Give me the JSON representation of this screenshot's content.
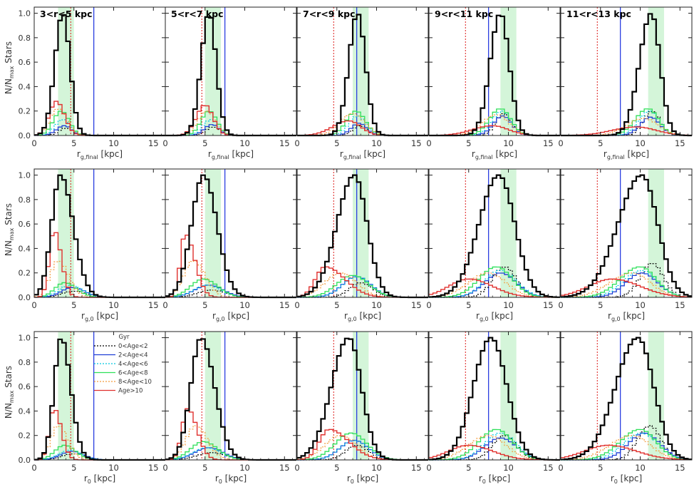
{
  "figure": {
    "ylabel_main": "N/N",
    "ylabel_sub": "max",
    "ylabel_tail": " Stars",
    "x_ticks": [
      "0",
      "5",
      "10",
      "15"
    ],
    "y_ticks": [
      "0.0",
      "0.2",
      "0.4",
      "0.6",
      "0.8",
      "1.0"
    ],
    "row_xlabels": [
      {
        "main": "r",
        "sub": "g,final",
        "tail": " [kpc]"
      },
      {
        "main": "r",
        "sub": "g,0",
        "tail": " [kpc]"
      },
      {
        "main": "r",
        "sub": "0",
        "tail": " [kpc]"
      }
    ],
    "panel_titles": [
      "3<r<5 kpc",
      "5<r<7 kpc",
      "7<r<9 kpc",
      "9<r<11 kpc",
      "11<r<13 kpc"
    ],
    "legend": {
      "title": "Gyr",
      "entries": [
        "0<Age<2",
        "2<Age<4",
        "4<Age<6",
        "6<Age<8",
        "8<Age<10",
        "Age>10"
      ]
    },
    "colors": {
      "total": "#000000",
      "age_0_2": "#000000",
      "age_2_4": "#1f3fd6",
      "age_4_6": "#00c8e0",
      "age_6_8": "#2ee05a",
      "age_8_10": "#f39a3a",
      "age_10": "#e0302e",
      "band": "#d4f5d9",
      "solar_line": "#2b3fe0",
      "bar_line": "#e0302e"
    }
  },
  "chart_data": {
    "type": "line",
    "subtype": "step-histogram grid",
    "rows": [
      "final guiding radius r_g,final",
      "initial guiding radius r_g,0",
      "birth radius r_0"
    ],
    "columns": [
      "3<r<5 kpc",
      "5<r<7 kpc",
      "7<r<9 kpc",
      "9<r<11 kpc",
      "11<r<13 kpc"
    ],
    "xlim": [
      0,
      16.5
    ],
    "ylim": [
      0,
      1.05
    ],
    "bin_width_kpc": 0.5,
    "reference_lines_kpc": {
      "solar_radius": 7.5,
      "bar_radius": 4.6
    },
    "shaded_bands_kpc": [
      [
        3,
        5
      ],
      [
        5,
        7
      ],
      [
        7,
        9
      ],
      [
        9,
        11
      ],
      [
        11,
        13
      ]
    ],
    "series_names": [
      "all stars",
      "0<Age<2",
      "2<Age<4",
      "4<Age<6",
      "6<Age<8",
      "8<Age<10",
      "Age>10"
    ],
    "approx_shape_params": {
      "note": "Each curve approximated as asymmetric Gaussian: [peak_x_kpc, peak_height, left_sigma, right_sigma]",
      "row1": [
        {
          "all": [
            3.6,
            1.0,
            1.0,
            0.9
          ],
          "age10": [
            2.8,
            0.28,
            0.9,
            1.0
          ],
          "age8_10": [
            3.0,
            0.22,
            1.0,
            1.1
          ],
          "age6_8": [
            3.4,
            0.2,
            1.0,
            1.0
          ],
          "age4_6": [
            3.6,
            0.13,
            1.0,
            1.0
          ],
          "age2_4": [
            3.8,
            0.08,
            1.0,
            0.9
          ],
          "age0_2": [
            4.0,
            0.06,
            0.9,
            0.9
          ]
        },
        {
          "all": [
            5.5,
            1.0,
            1.0,
            0.9
          ],
          "age10": [
            5.0,
            0.25,
            1.1,
            1.0
          ],
          "age8_10": [
            5.2,
            0.2,
            1.1,
            1.1
          ],
          "age6_8": [
            5.5,
            0.2,
            1.0,
            1.0
          ],
          "age4_6": [
            5.7,
            0.13,
            1.0,
            1.0
          ],
          "age2_4": [
            5.9,
            0.09,
            1.0,
            0.9
          ],
          "age0_2": [
            6.0,
            0.07,
            0.9,
            0.9
          ]
        },
        {
          "all": [
            7.6,
            1.0,
            1.1,
            1.0
          ],
          "age10": [
            6.5,
            0.12,
            2.0,
            1.5
          ],
          "age8_10": [
            7.0,
            0.18,
            1.6,
            1.5
          ],
          "age6_8": [
            7.4,
            0.2,
            1.2,
            1.2
          ],
          "age4_6": [
            7.6,
            0.16,
            1.1,
            1.1
          ],
          "age2_4": [
            7.8,
            0.1,
            1.0,
            1.0
          ],
          "age0_2": [
            7.9,
            0.08,
            0.9,
            0.9
          ]
        },
        {
          "all": [
            9.0,
            1.0,
            1.3,
            1.1
          ],
          "age10": [
            8.0,
            0.08,
            2.5,
            2.0
          ],
          "age8_10": [
            8.5,
            0.17,
            1.8,
            1.6
          ],
          "age6_8": [
            9.0,
            0.22,
            1.4,
            1.3
          ],
          "age4_6": [
            9.2,
            0.2,
            1.3,
            1.2
          ],
          "age2_4": [
            9.3,
            0.16,
            1.2,
            1.1
          ],
          "age0_2": [
            9.4,
            0.18,
            1.0,
            1.0
          ]
        },
        {
          "all": [
            11.4,
            1.0,
            1.5,
            1.1
          ],
          "age10": [
            9.5,
            0.07,
            3.0,
            2.5
          ],
          "age8_10": [
            10.5,
            0.14,
            2.2,
            1.8
          ],
          "age6_8": [
            11.0,
            0.22,
            1.6,
            1.3
          ],
          "age4_6": [
            11.2,
            0.2,
            1.4,
            1.2
          ],
          "age2_4": [
            11.3,
            0.15,
            1.3,
            1.2
          ],
          "age0_2": [
            11.5,
            0.2,
            1.1,
            1.0
          ]
        }
      ],
      "row2": [
        {
          "all": [
            3.3,
            1.0,
            1.1,
            1.6
          ],
          "age10": [
            2.5,
            0.55,
            0.6,
            0.9
          ],
          "age8_10": [
            3.0,
            0.3,
            1.0,
            1.3
          ],
          "age6_8": [
            3.8,
            0.12,
            1.2,
            1.5
          ],
          "age4_6": [
            4.5,
            0.1,
            1.4,
            1.6
          ],
          "age2_4": [
            4.8,
            0.08,
            1.4,
            1.6
          ],
          "age0_2": [
            5.0,
            0.05,
            1.5,
            1.6
          ]
        },
        {
          "all": [
            4.8,
            1.0,
            1.5,
            1.7
          ],
          "age10": [
            2.5,
            0.52,
            0.6,
            1.2
          ],
          "age8_10": [
            3.5,
            0.3,
            1.2,
            1.5
          ],
          "age6_8": [
            4.8,
            0.15,
            1.6,
            1.8
          ],
          "age4_6": [
            5.2,
            0.1,
            1.6,
            1.8
          ],
          "age2_4": [
            5.5,
            0.1,
            1.8,
            1.8
          ],
          "age0_2": [
            5.8,
            0.06,
            1.7,
            1.8
          ]
        },
        {
          "all": [
            7.2,
            1.0,
            2.2,
            1.6
          ],
          "age10": [
            3.5,
            0.25,
            1.2,
            2.5
          ],
          "age8_10": [
            5.5,
            0.2,
            2.0,
            2.0
          ],
          "age6_8": [
            7.0,
            0.18,
            2.0,
            2.0
          ],
          "age4_6": [
            7.5,
            0.17,
            1.8,
            1.8
          ],
          "age2_4": [
            7.5,
            0.17,
            1.8,
            1.8
          ],
          "age0_2": [
            8.0,
            0.12,
            1.4,
            1.5
          ]
        },
        {
          "all": [
            8.8,
            1.0,
            2.5,
            2.0
          ],
          "age10": [
            5.0,
            0.15,
            2.5,
            3.0
          ],
          "age8_10": [
            7.5,
            0.2,
            2.5,
            2.2
          ],
          "age6_8": [
            8.5,
            0.25,
            2.2,
            2.0
          ],
          "age4_6": [
            9.0,
            0.22,
            2.0,
            2.0
          ],
          "age2_4": [
            9.0,
            0.2,
            2.0,
            2.0
          ],
          "age0_2": [
            9.5,
            0.25,
            1.5,
            1.5
          ]
        },
        {
          "all": [
            10.2,
            1.0,
            3.0,
            2.0
          ],
          "age10": [
            6.5,
            0.15,
            3.0,
            3.5
          ],
          "age8_10": [
            9.0,
            0.2,
            2.8,
            2.3
          ],
          "age6_8": [
            10.0,
            0.25,
            2.5,
            2.0
          ],
          "age4_6": [
            10.2,
            0.22,
            2.3,
            2.0
          ],
          "age2_4": [
            10.2,
            0.2,
            2.0,
            2.0
          ],
          "age0_2": [
            11.5,
            0.28,
            1.5,
            1.4
          ]
        }
      ],
      "row3": [
        {
          "all": [
            3.4,
            1.0,
            0.9,
            1.2
          ],
          "age10": [
            2.5,
            0.42,
            0.6,
            0.9
          ],
          "age8_10": [
            3.0,
            0.28,
            0.9,
            1.2
          ],
          "age6_8": [
            3.8,
            0.12,
            1.2,
            1.4
          ],
          "age4_6": [
            4.5,
            0.08,
            1.4,
            1.5
          ],
          "age2_4": [
            4.7,
            0.07,
            1.4,
            1.5
          ],
          "age0_2": [
            5.0,
            0.05,
            1.5,
            1.5
          ]
        },
        {
          "all": [
            4.5,
            1.0,
            1.3,
            1.7
          ],
          "age10": [
            2.8,
            0.42,
            0.7,
            1.2
          ],
          "age8_10": [
            3.8,
            0.28,
            1.2,
            1.5
          ],
          "age6_8": [
            4.8,
            0.15,
            1.6,
            1.8
          ],
          "age4_6": [
            5.2,
            0.1,
            1.7,
            1.8
          ],
          "age2_4": [
            5.5,
            0.1,
            1.8,
            1.8
          ],
          "age0_2": [
            5.8,
            0.06,
            1.8,
            1.8
          ]
        },
        {
          "all": [
            6.5,
            1.0,
            2.2,
            1.6
          ],
          "age10": [
            4.0,
            0.25,
            1.2,
            2.5
          ],
          "age8_10": [
            5.5,
            0.2,
            2.0,
            2.0
          ],
          "age6_8": [
            6.8,
            0.22,
            2.0,
            2.0
          ],
          "age4_6": [
            7.2,
            0.16,
            1.8,
            1.8
          ],
          "age2_4": [
            7.2,
            0.16,
            1.8,
            1.8
          ],
          "age0_2": [
            7.5,
            0.12,
            1.4,
            1.5
          ]
        },
        {
          "all": [
            7.8,
            1.0,
            2.2,
            2.0
          ],
          "age10": [
            5.0,
            0.12,
            2.5,
            3.0
          ],
          "age8_10": [
            7.5,
            0.2,
            2.5,
            2.2
          ],
          "age6_8": [
            8.5,
            0.25,
            2.2,
            2.0
          ],
          "age4_6": [
            9.0,
            0.22,
            2.0,
            2.0
          ],
          "age2_4": [
            9.0,
            0.18,
            2.0,
            2.0
          ],
          "age0_2": [
            9.5,
            0.2,
            1.5,
            1.5
          ]
        },
        {
          "all": [
            9.7,
            1.0,
            2.8,
            2.0
          ],
          "age10": [
            6.0,
            0.12,
            3.0,
            3.5
          ],
          "age8_10": [
            9.0,
            0.2,
            2.8,
            2.3
          ],
          "age6_8": [
            10.0,
            0.25,
            2.5,
            2.0
          ],
          "age4_6": [
            10.2,
            0.22,
            2.3,
            2.0
          ],
          "age2_4": [
            10.5,
            0.22,
            2.0,
            2.0
          ],
          "age0_2": [
            11.2,
            0.28,
            1.5,
            1.4
          ]
        }
      ]
    }
  }
}
